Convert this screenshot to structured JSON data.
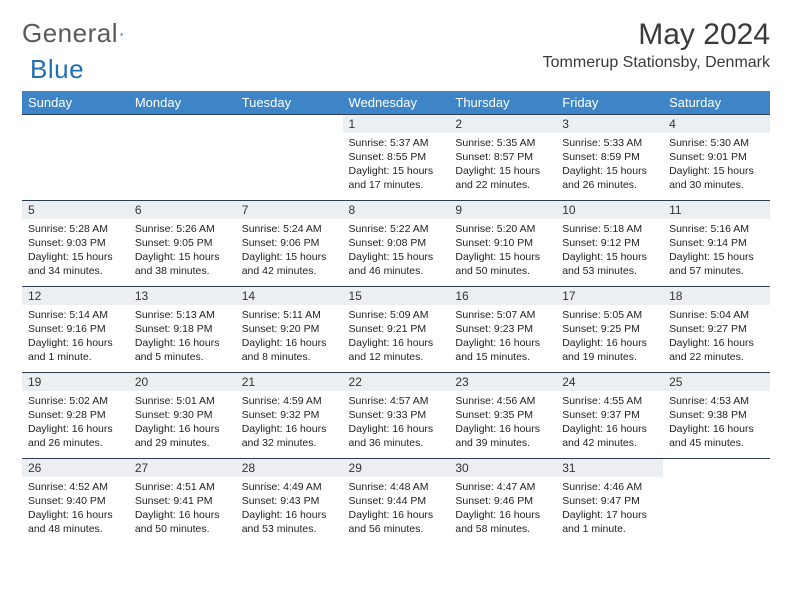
{
  "brand": {
    "part1": "General",
    "part2": "Blue"
  },
  "title": "May 2024",
  "location": "Tommerup Stationsby, Denmark",
  "colors": {
    "header_bg": "#3d85c6",
    "header_fg": "#ffffff",
    "daynum_bg": "#eceff1",
    "border": "#2c3e50",
    "logo_gray": "#5a5a5a",
    "logo_blue": "#1f6fb2"
  },
  "dayNames": [
    "Sunday",
    "Monday",
    "Tuesday",
    "Wednesday",
    "Thursday",
    "Friday",
    "Saturday"
  ],
  "weeks": [
    {
      "nums": [
        "",
        "",
        "",
        "1",
        "2",
        "3",
        "4"
      ],
      "info": [
        {
          "sunrise": "",
          "sunset": "",
          "daylight": ""
        },
        {
          "sunrise": "",
          "sunset": "",
          "daylight": ""
        },
        {
          "sunrise": "",
          "sunset": "",
          "daylight": ""
        },
        {
          "sunrise": "Sunrise: 5:37 AM",
          "sunset": "Sunset: 8:55 PM",
          "daylight": "Daylight: 15 hours and 17 minutes."
        },
        {
          "sunrise": "Sunrise: 5:35 AM",
          "sunset": "Sunset: 8:57 PM",
          "daylight": "Daylight: 15 hours and 22 minutes."
        },
        {
          "sunrise": "Sunrise: 5:33 AM",
          "sunset": "Sunset: 8:59 PM",
          "daylight": "Daylight: 15 hours and 26 minutes."
        },
        {
          "sunrise": "Sunrise: 5:30 AM",
          "sunset": "Sunset: 9:01 PM",
          "daylight": "Daylight: 15 hours and 30 minutes."
        }
      ]
    },
    {
      "nums": [
        "5",
        "6",
        "7",
        "8",
        "9",
        "10",
        "11"
      ],
      "info": [
        {
          "sunrise": "Sunrise: 5:28 AM",
          "sunset": "Sunset: 9:03 PM",
          "daylight": "Daylight: 15 hours and 34 minutes."
        },
        {
          "sunrise": "Sunrise: 5:26 AM",
          "sunset": "Sunset: 9:05 PM",
          "daylight": "Daylight: 15 hours and 38 minutes."
        },
        {
          "sunrise": "Sunrise: 5:24 AM",
          "sunset": "Sunset: 9:06 PM",
          "daylight": "Daylight: 15 hours and 42 minutes."
        },
        {
          "sunrise": "Sunrise: 5:22 AM",
          "sunset": "Sunset: 9:08 PM",
          "daylight": "Daylight: 15 hours and 46 minutes."
        },
        {
          "sunrise": "Sunrise: 5:20 AM",
          "sunset": "Sunset: 9:10 PM",
          "daylight": "Daylight: 15 hours and 50 minutes."
        },
        {
          "sunrise": "Sunrise: 5:18 AM",
          "sunset": "Sunset: 9:12 PM",
          "daylight": "Daylight: 15 hours and 53 minutes."
        },
        {
          "sunrise": "Sunrise: 5:16 AM",
          "sunset": "Sunset: 9:14 PM",
          "daylight": "Daylight: 15 hours and 57 minutes."
        }
      ]
    },
    {
      "nums": [
        "12",
        "13",
        "14",
        "15",
        "16",
        "17",
        "18"
      ],
      "info": [
        {
          "sunrise": "Sunrise: 5:14 AM",
          "sunset": "Sunset: 9:16 PM",
          "daylight": "Daylight: 16 hours and 1 minute."
        },
        {
          "sunrise": "Sunrise: 5:13 AM",
          "sunset": "Sunset: 9:18 PM",
          "daylight": "Daylight: 16 hours and 5 minutes."
        },
        {
          "sunrise": "Sunrise: 5:11 AM",
          "sunset": "Sunset: 9:20 PM",
          "daylight": "Daylight: 16 hours and 8 minutes."
        },
        {
          "sunrise": "Sunrise: 5:09 AM",
          "sunset": "Sunset: 9:21 PM",
          "daylight": "Daylight: 16 hours and 12 minutes."
        },
        {
          "sunrise": "Sunrise: 5:07 AM",
          "sunset": "Sunset: 9:23 PM",
          "daylight": "Daylight: 16 hours and 15 minutes."
        },
        {
          "sunrise": "Sunrise: 5:05 AM",
          "sunset": "Sunset: 9:25 PM",
          "daylight": "Daylight: 16 hours and 19 minutes."
        },
        {
          "sunrise": "Sunrise: 5:04 AM",
          "sunset": "Sunset: 9:27 PM",
          "daylight": "Daylight: 16 hours and 22 minutes."
        }
      ]
    },
    {
      "nums": [
        "19",
        "20",
        "21",
        "22",
        "23",
        "24",
        "25"
      ],
      "info": [
        {
          "sunrise": "Sunrise: 5:02 AM",
          "sunset": "Sunset: 9:28 PM",
          "daylight": "Daylight: 16 hours and 26 minutes."
        },
        {
          "sunrise": "Sunrise: 5:01 AM",
          "sunset": "Sunset: 9:30 PM",
          "daylight": "Daylight: 16 hours and 29 minutes."
        },
        {
          "sunrise": "Sunrise: 4:59 AM",
          "sunset": "Sunset: 9:32 PM",
          "daylight": "Daylight: 16 hours and 32 minutes."
        },
        {
          "sunrise": "Sunrise: 4:57 AM",
          "sunset": "Sunset: 9:33 PM",
          "daylight": "Daylight: 16 hours and 36 minutes."
        },
        {
          "sunrise": "Sunrise: 4:56 AM",
          "sunset": "Sunset: 9:35 PM",
          "daylight": "Daylight: 16 hours and 39 minutes."
        },
        {
          "sunrise": "Sunrise: 4:55 AM",
          "sunset": "Sunset: 9:37 PM",
          "daylight": "Daylight: 16 hours and 42 minutes."
        },
        {
          "sunrise": "Sunrise: 4:53 AM",
          "sunset": "Sunset: 9:38 PM",
          "daylight": "Daylight: 16 hours and 45 minutes."
        }
      ]
    },
    {
      "nums": [
        "26",
        "27",
        "28",
        "29",
        "30",
        "31",
        ""
      ],
      "info": [
        {
          "sunrise": "Sunrise: 4:52 AM",
          "sunset": "Sunset: 9:40 PM",
          "daylight": "Daylight: 16 hours and 48 minutes."
        },
        {
          "sunrise": "Sunrise: 4:51 AM",
          "sunset": "Sunset: 9:41 PM",
          "daylight": "Daylight: 16 hours and 50 minutes."
        },
        {
          "sunrise": "Sunrise: 4:49 AM",
          "sunset": "Sunset: 9:43 PM",
          "daylight": "Daylight: 16 hours and 53 minutes."
        },
        {
          "sunrise": "Sunrise: 4:48 AM",
          "sunset": "Sunset: 9:44 PM",
          "daylight": "Daylight: 16 hours and 56 minutes."
        },
        {
          "sunrise": "Sunrise: 4:47 AM",
          "sunset": "Sunset: 9:46 PM",
          "daylight": "Daylight: 16 hours and 58 minutes."
        },
        {
          "sunrise": "Sunrise: 4:46 AM",
          "sunset": "Sunset: 9:47 PM",
          "daylight": "Daylight: 17 hours and 1 minute."
        },
        {
          "sunrise": "",
          "sunset": "",
          "daylight": ""
        }
      ]
    }
  ]
}
